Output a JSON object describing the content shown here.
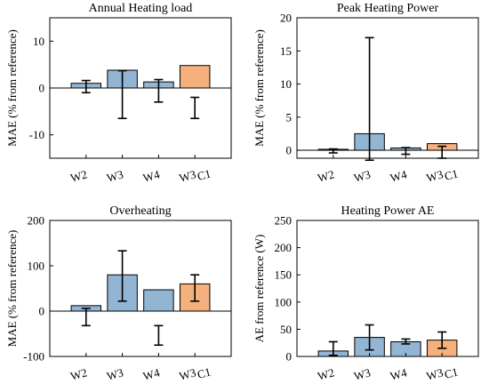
{
  "colors": {
    "blue": "#92b5d3",
    "orange": "#f5b07d",
    "edge": "#000000"
  },
  "chart_data": [
    {
      "type": "bar",
      "title": "Annual Heating load",
      "ylabel": "MAE (% from reference)",
      "ylim": [
        -15,
        15
      ],
      "yticks": [
        -10,
        0,
        10
      ],
      "grid": false,
      "categories": [
        {
          "main": "W2",
          "sub": ""
        },
        {
          "main": "W3",
          "sub": ""
        },
        {
          "main": "W4",
          "sub": ""
        },
        {
          "main": "W3",
          "sub": "C1"
        }
      ],
      "values": [
        1.0,
        3.8,
        1.3,
        4.8
      ],
      "error_low": [
        -1.0,
        -6.5,
        -3.0,
        -6.5
      ],
      "error_high": [
        1.6,
        3.7,
        1.8,
        -2.0
      ],
      "bar_colors": [
        "blue",
        "blue",
        "blue",
        "orange"
      ]
    },
    {
      "type": "bar",
      "title": "Peak Heating Power",
      "ylabel": "MAE (% from reference)",
      "ylim": [
        -1.2,
        20
      ],
      "yticks": [
        0,
        5,
        10,
        15,
        20
      ],
      "grid": false,
      "categories": [
        {
          "main": "W2",
          "sub": ""
        },
        {
          "main": "W3",
          "sub": ""
        },
        {
          "main": "W4",
          "sub": ""
        },
        {
          "main": "W3",
          "sub": "C1"
        }
      ],
      "values": [
        0.15,
        2.5,
        0.35,
        1.0
      ],
      "error_low": [
        -0.4,
        -1.5,
        -0.6,
        -1.2
      ],
      "error_high": [
        0.2,
        17.0,
        0.4,
        0.6
      ],
      "bar_colors": [
        "blue",
        "blue",
        "blue",
        "orange"
      ]
    },
    {
      "type": "bar",
      "title": "Overheating",
      "ylabel": "MAE (% from reference)",
      "ylim": [
        -100,
        200
      ],
      "yticks": [
        -100,
        0,
        100,
        200
      ],
      "grid": false,
      "categories": [
        {
          "main": "W2",
          "sub": ""
        },
        {
          "main": "W3",
          "sub": ""
        },
        {
          "main": "W4",
          "sub": ""
        },
        {
          "main": "W3",
          "sub": "C1"
        }
      ],
      "values": [
        12,
        80,
        47,
        60
      ],
      "error_low": [
        -32,
        22,
        -75,
        22
      ],
      "error_high": [
        6,
        133,
        -32,
        80
      ],
      "bar_colors": [
        "blue",
        "blue",
        "blue",
        "orange"
      ]
    },
    {
      "type": "bar",
      "title": "Heating Power AE",
      "ylabel": "AE from reference (W)",
      "ylim": [
        0,
        250
      ],
      "yticks": [
        0,
        50,
        100,
        150,
        200,
        250
      ],
      "grid": false,
      "categories": [
        {
          "main": "W2",
          "sub": ""
        },
        {
          "main": "W3",
          "sub": ""
        },
        {
          "main": "W4",
          "sub": ""
        },
        {
          "main": "W3",
          "sub": "C1"
        }
      ],
      "values": [
        10,
        35,
        27,
        30
      ],
      "error_low": [
        2,
        12,
        23,
        15
      ],
      "error_high": [
        27,
        58,
        32,
        45
      ],
      "bar_colors": [
        "blue",
        "blue",
        "blue",
        "orange"
      ]
    }
  ]
}
